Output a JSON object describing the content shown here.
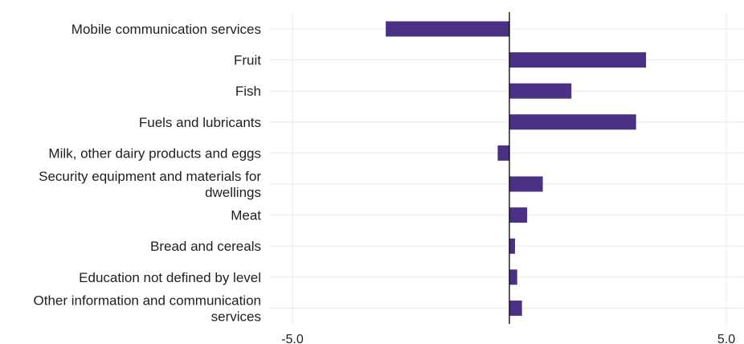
{
  "chart_data": {
    "type": "bar",
    "orientation": "horizontal",
    "categories": [
      "Mobile communication services",
      "Fruit",
      "Fish",
      "Fuels and lubricants",
      "Milk, other dairy products and eggs",
      "Security equipment and materials for dwellings",
      "Meat",
      "Bread and cereals",
      "Education not defined by level",
      "Other information and communication services"
    ],
    "category_lines": [
      [
        "Mobile communication services"
      ],
      [
        "Fruit"
      ],
      [
        "Fish"
      ],
      [
        "Fuels and lubricants"
      ],
      [
        "Milk, other dairy products and eggs"
      ],
      [
        "Security equipment and materials for",
        "dwellings"
      ],
      [
        "Meat"
      ],
      [
        "Bread and cereals"
      ],
      [
        "Education not defined by level"
      ],
      [
        "Other information and communication",
        "services"
      ]
    ],
    "values": [
      -2.85,
      3.15,
      1.43,
      2.92,
      -0.27,
      0.77,
      0.41,
      0.13,
      0.18,
      0.29
    ],
    "xlim": [
      -5.5,
      5.5
    ],
    "xticks": [
      -5.0,
      5.0
    ],
    "xtick_labels": [
      "-5.0",
      "5.0"
    ],
    "title": "",
    "xlabel": "",
    "ylabel": "",
    "grid": true,
    "legend": "none",
    "colors": {
      "bar": "#4a3185",
      "zero_line": "#000000",
      "grid": "#e8e8e8",
      "text": "#1f1f1f"
    }
  }
}
